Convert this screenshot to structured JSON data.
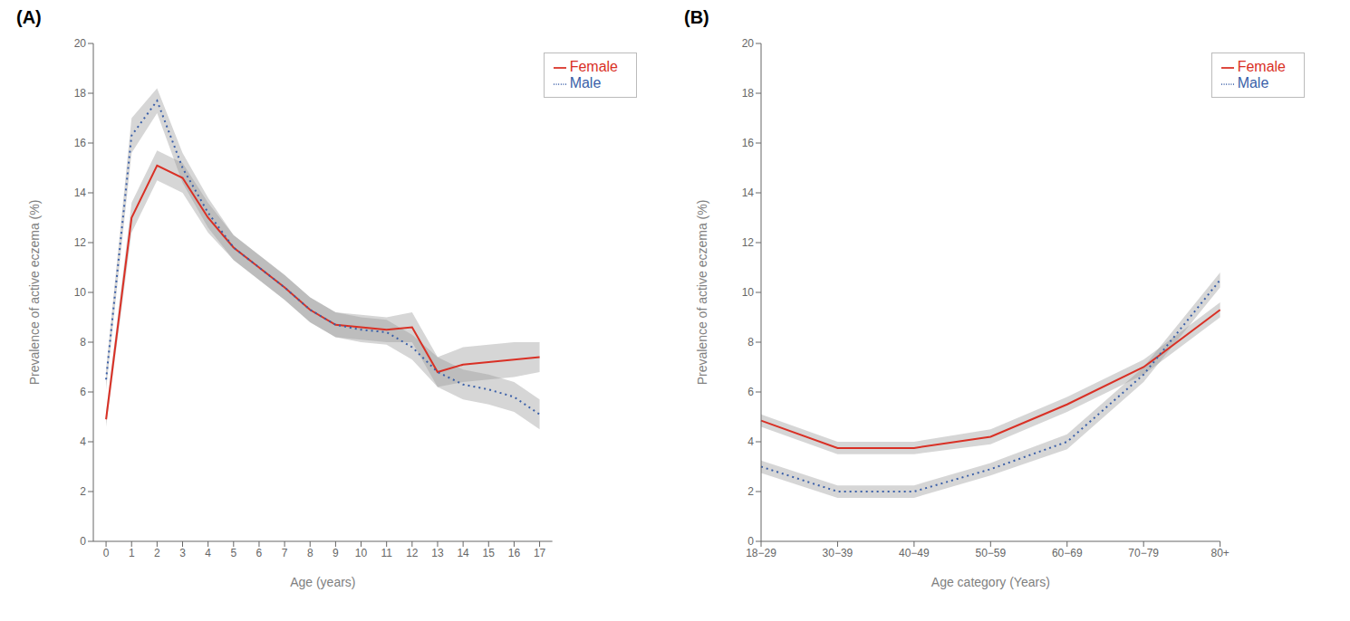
{
  "chart_data": [
    {
      "type": "line",
      "title": "(A)",
      "xlabel": "Age (years)",
      "ylabel": "Prevalence of active eczema (%)",
      "x": [
        0,
        1,
        2,
        3,
        4,
        5,
        6,
        7,
        8,
        9,
        10,
        11,
        12,
        13,
        14,
        15,
        16,
        17
      ],
      "xlim": [
        -0.5,
        17.5
      ],
      "xticks": [
        0,
        1,
        2,
        3,
        4,
        5,
        6,
        7,
        8,
        9,
        10,
        11,
        12,
        13,
        14,
        15,
        16,
        17
      ],
      "ylim": [
        0,
        20
      ],
      "yticks": [
        0,
        2,
        4,
        6,
        8,
        10,
        12,
        14,
        16,
        18,
        20
      ],
      "grid": false,
      "legend": "upper right",
      "series": [
        {
          "name": "Female",
          "color": "#d93025",
          "line_style": "solid",
          "values": [
            4.9,
            13.0,
            15.1,
            14.6,
            13.0,
            11.8,
            11.0,
            10.2,
            9.3,
            8.7,
            8.6,
            8.5,
            8.6,
            6.8,
            7.1,
            7.2,
            7.3,
            7.4
          ],
          "band": {
            "color": "#999999",
            "upper": [
              5.2,
              13.6,
              15.7,
              15.2,
              13.6,
              12.3,
              11.5,
              10.7,
              9.8,
              9.2,
              9.1,
              9.0,
              9.2,
              7.4,
              7.8,
              7.9,
              8.0,
              8.0
            ],
            "lower": [
              4.6,
              12.4,
              14.5,
              14.0,
              12.4,
              11.3,
              10.5,
              9.7,
              8.8,
              8.2,
              8.1,
              8.0,
              8.0,
              6.2,
              6.4,
              6.5,
              6.6,
              6.8
            ]
          }
        },
        {
          "name": "Male",
          "color": "#3a5fa8",
          "line_style": "dotted",
          "values": [
            6.5,
            16.3,
            17.7,
            15.0,
            13.2,
            11.8,
            11.0,
            10.2,
            9.3,
            8.7,
            8.5,
            8.4,
            7.8,
            6.8,
            6.3,
            6.1,
            5.8,
            5.1
          ],
          "band": {
            "color": "#999999",
            "upper": [
              6.9,
              17.0,
              18.2,
              15.6,
              13.8,
              12.3,
              11.5,
              10.7,
              9.8,
              9.2,
              9.0,
              8.9,
              8.3,
              7.4,
              6.9,
              6.7,
              6.4,
              5.7
            ],
            "lower": [
              6.1,
              15.6,
              17.2,
              14.4,
              12.6,
              11.3,
              10.5,
              9.7,
              8.8,
              8.2,
              8.0,
              7.9,
              7.3,
              6.2,
              5.7,
              5.5,
              5.2,
              4.5
            ]
          }
        }
      ]
    },
    {
      "type": "line",
      "title": "(B)",
      "xlabel": "Age category (Years)",
      "ylabel": "Prevalence of active eczema (%)",
      "categories": [
        "18−29",
        "30−39",
        "40−49",
        "50−59",
        "60−69",
        "70−79",
        "80+"
      ],
      "ylim": [
        0,
        20
      ],
      "yticks": [
        0,
        2,
        4,
        6,
        8,
        10,
        12,
        14,
        16,
        18,
        20
      ],
      "grid": false,
      "legend": "upper right",
      "series": [
        {
          "name": "Female",
          "color": "#d93025",
          "line_style": "solid",
          "values": [
            4.85,
            3.75,
            3.75,
            4.2,
            5.5,
            7.0,
            9.3
          ],
          "band": {
            "color": "#999999",
            "upper": [
              5.1,
              4.0,
              4.0,
              4.5,
              5.8,
              7.3,
              9.6
            ],
            "lower": [
              4.6,
              3.5,
              3.5,
              3.9,
              5.2,
              6.7,
              9.0
            ]
          }
        },
        {
          "name": "Male",
          "color": "#3a5fa8",
          "line_style": "dotted",
          "values": [
            3.0,
            2.0,
            2.0,
            2.9,
            4.0,
            6.7,
            10.5
          ],
          "band": {
            "color": "#999999",
            "upper": [
              3.25,
              2.25,
              2.25,
              3.15,
              4.3,
              7.0,
              10.8
            ],
            "lower": [
              2.75,
              1.75,
              1.75,
              2.65,
              3.7,
              6.4,
              10.2
            ]
          }
        }
      ]
    }
  ]
}
